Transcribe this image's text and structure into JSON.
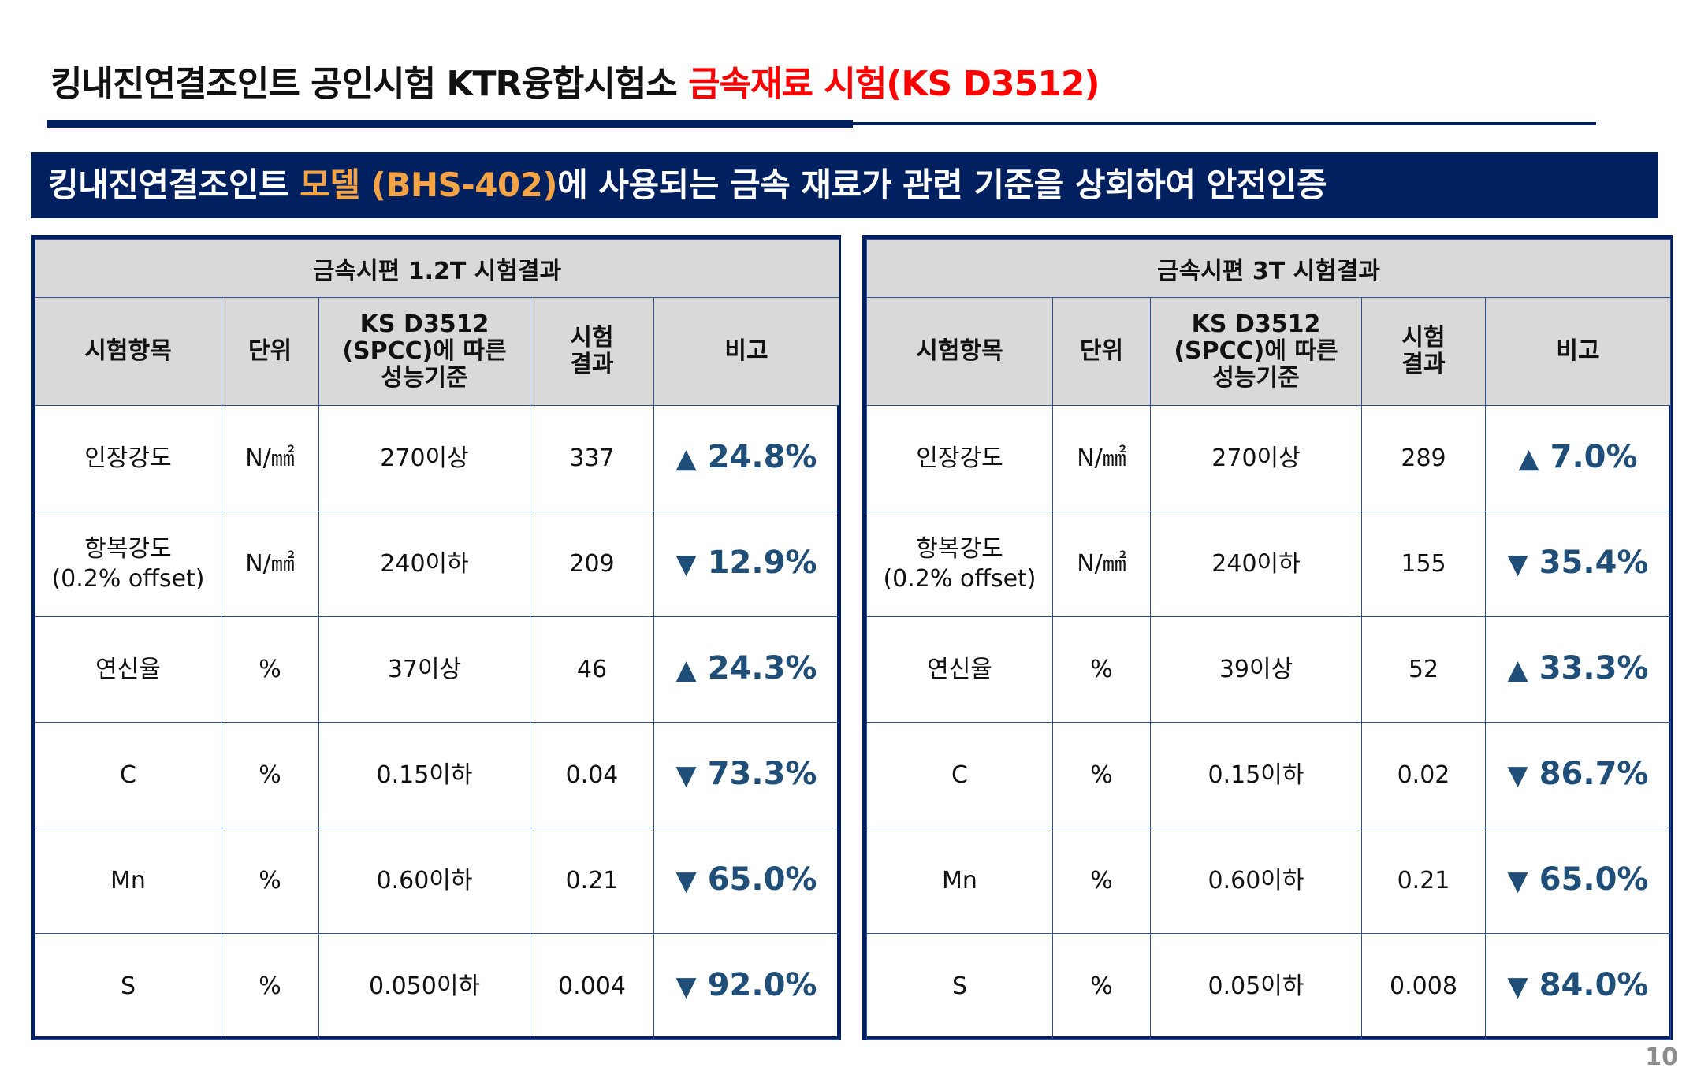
{
  "title": {
    "main": "킹내진연결조인트 공인시험 KTR융합시험소 ",
    "highlight": "금속재료 시험(KS D3512)"
  },
  "banner": {
    "part1": "킹내진연결조인트 ",
    "highlight": "모델 (BHS-402)",
    "part2": "에 사용되는 금속 재료가 관련 기준을 상회하여 안전인증"
  },
  "colors": {
    "navy": "#002060",
    "red": "#ff0000",
    "orange": "#f4a345",
    "pct": "#1f4e79",
    "header_bg": "#d9d9d9"
  },
  "headers": [
    "시험항목",
    "단위",
    "KS D3512\n(SPCC)에 따른\n성능기준",
    "시험\n결과",
    "비고"
  ],
  "tables": [
    {
      "title": "금속시편 1.2T 시험결과",
      "rows": [
        {
          "item": "인장강도",
          "unit": "N/㎟",
          "standard": "270이상",
          "result": "337",
          "dir": "up",
          "arrow": "▲",
          "pct": "24.8%"
        },
        {
          "item": "항복강도\n(0.2% offset)",
          "unit": "N/㎟",
          "standard": "240이하",
          "result": "209",
          "dir": "down",
          "arrow": "▼",
          "pct": "12.9%"
        },
        {
          "item": "연신율",
          "unit": "%",
          "standard": "37이상",
          "result": "46",
          "dir": "up",
          "arrow": "▲",
          "pct": "24.3%"
        },
        {
          "item": "C",
          "unit": "%",
          "standard": "0.15이하",
          "result": "0.04",
          "dir": "down",
          "arrow": "▼",
          "pct": "73.3%"
        },
        {
          "item": "Mn",
          "unit": "%",
          "standard": "0.60이하",
          "result": "0.21",
          "dir": "down",
          "arrow": "▼",
          "pct": "65.0%"
        },
        {
          "item": "S",
          "unit": "%",
          "standard": "0.050이하",
          "result": "0.004",
          "dir": "down",
          "arrow": "▼",
          "pct": "92.0%"
        }
      ]
    },
    {
      "title": "금속시편 3T 시험결과",
      "rows": [
        {
          "item": "인장강도",
          "unit": "N/㎟",
          "standard": "270이상",
          "result": "289",
          "dir": "up",
          "arrow": "▲",
          "pct": "7.0%"
        },
        {
          "item": "항복강도\n(0.2% offset)",
          "unit": "N/㎟",
          "standard": "240이하",
          "result": "155",
          "dir": "down",
          "arrow": "▼",
          "pct": "35.4%"
        },
        {
          "item": "연신율",
          "unit": "%",
          "standard": "39이상",
          "result": "52",
          "dir": "up",
          "arrow": "▲",
          "pct": "33.3%"
        },
        {
          "item": "C",
          "unit": "%",
          "standard": "0.15이하",
          "result": "0.02",
          "dir": "down",
          "arrow": "▼",
          "pct": "86.7%"
        },
        {
          "item": "Mn",
          "unit": "%",
          "standard": "0.60이하",
          "result": "0.21",
          "dir": "down",
          "arrow": "▼",
          "pct": "65.0%"
        },
        {
          "item": "S",
          "unit": "%",
          "standard": "0.05이하",
          "result": "0.008",
          "dir": "down",
          "arrow": "▼",
          "pct": "84.0%"
        }
      ]
    }
  ],
  "page_number": "10"
}
